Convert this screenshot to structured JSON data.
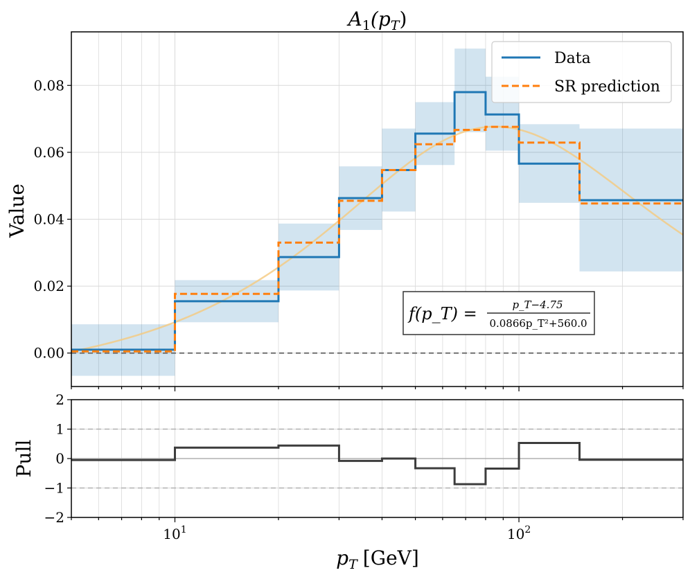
{
  "chart_data": [
    {
      "type": "line",
      "title": "A₁(p_T)",
      "title_main": "A",
      "title_sub": "1",
      "title_arg": "(p",
      "title_arg_sub": "T",
      "title_close": ")",
      "xlabel": "p_T [GeV]",
      "xlabel_main": "p",
      "xlabel_sub": "T",
      "xlabel_unit": "[GeV]",
      "ylabel": "Value",
      "xscale": "log",
      "xlim": [
        5,
        300
      ],
      "ylim": [
        -0.01,
        0.096
      ],
      "yticks": [
        0.0,
        0.02,
        0.04,
        0.06,
        0.08
      ],
      "ytick_labels": [
        "0.00",
        "0.02",
        "0.04",
        "0.06",
        "0.08"
      ],
      "bin_edges": [
        5,
        10,
        20,
        30,
        40,
        50,
        65,
        80,
        100,
        150,
        300
      ],
      "series": [
        {
          "name": "Data",
          "color": "#1f77b4",
          "style": "solid",
          "values": [
            0.001,
            0.0155,
            0.0287,
            0.0463,
            0.0547,
            0.0656,
            0.078,
            0.0713,
            0.0566,
            0.0457
          ]
        },
        {
          "name": "SR prediction",
          "color": "#ff7f0e",
          "style": "dashed",
          "values": [
            0.0005,
            0.0177,
            0.033,
            0.0455,
            0.0547,
            0.0624,
            0.0667,
            0.0676,
            0.0629,
            0.0447
          ]
        }
      ],
      "uncertainty_band": {
        "color": "#1f77b4",
        "lower": [
          -0.0068,
          0.0092,
          0.0187,
          0.0368,
          0.0423,
          0.0562,
          0.066,
          0.0605,
          0.0449,
          0.0244
        ],
        "upper": [
          0.0086,
          0.0218,
          0.0387,
          0.0558,
          0.0671,
          0.075,
          0.091,
          0.0826,
          0.0684,
          0.0671
        ]
      },
      "fit_curve": {
        "color": "#f5c97e",
        "formula_lhs": "f(p_T) =",
        "formula_numerator": "p_T−4.75",
        "formula_denominator": "0.0866p_T²+560.0",
        "params": {
          "offset": 4.75,
          "a": 0.0866,
          "b": 560.0
        }
      },
      "reference_line": {
        "y": 0.0,
        "color": "#707070",
        "style": "dashed"
      },
      "legend": {
        "position": "top-right",
        "entries": [
          "Data",
          "SR prediction"
        ]
      }
    },
    {
      "type": "line",
      "title": "",
      "xlabel": "p_T [GeV]",
      "ylabel": "Pull",
      "xscale": "log",
      "xlim": [
        5,
        300
      ],
      "ylim": [
        -2,
        2
      ],
      "yticks": [
        -2,
        -1,
        0,
        1,
        2
      ],
      "ytick_labels": [
        "−2",
        "−1",
        "0",
        "1",
        "2"
      ],
      "xtick_major": [
        10,
        100
      ],
      "xtick_labels": [
        "10¹",
        "10²"
      ],
      "xtick_label_base": "10",
      "xtick_label_exp": [
        "1",
        "2"
      ],
      "bin_edges": [
        5,
        10,
        20,
        30,
        40,
        50,
        65,
        80,
        100,
        150,
        300
      ],
      "series": [
        {
          "name": "Pull",
          "color": "#3c3c3c",
          "style": "solid",
          "values": [
            -0.05,
            0.37,
            0.44,
            -0.08,
            0.0,
            -0.33,
            -0.87,
            -0.34,
            0.53,
            -0.04
          ]
        }
      ],
      "reference_lines": [
        {
          "y": 0,
          "color": "#b0b0b0",
          "style": "solid"
        },
        {
          "y": 1,
          "color": "#b0b0b0",
          "style": "dashed"
        },
        {
          "y": -1,
          "color": "#b0b0b0",
          "style": "dashed"
        }
      ]
    }
  ]
}
